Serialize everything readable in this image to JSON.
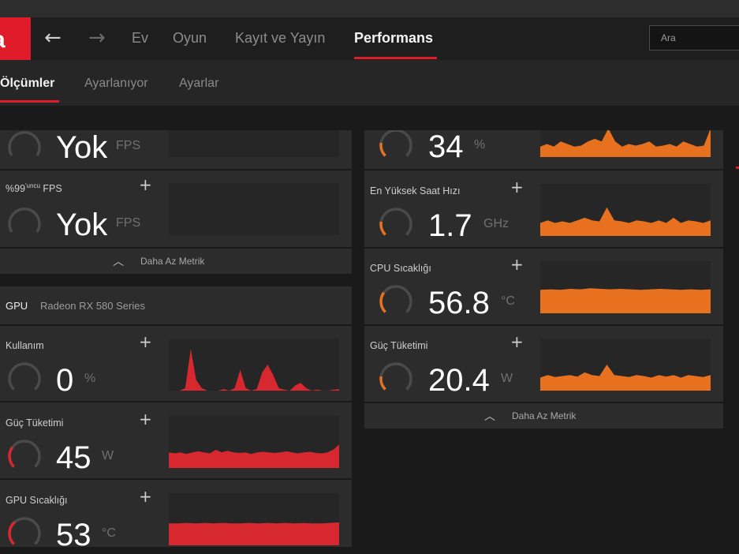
{
  "nav": {
    "logo": "a",
    "back_arrow": "←",
    "forward_arrow": "→",
    "items": [
      {
        "label": "Ev"
      },
      {
        "label": "Oyun"
      },
      {
        "label": "Kayıt ve Yayın"
      },
      {
        "label": "Performans",
        "active": true
      }
    ],
    "search_placeholder": "Ara"
  },
  "subnav": {
    "items": [
      {
        "label": "Ölçümler",
        "active": true
      },
      {
        "label": "Ayarlanıyor"
      },
      {
        "label": "Ayarlar"
      }
    ]
  },
  "left_panel": {
    "fps_row": {
      "value": "Yok",
      "unit": "FPS"
    },
    "p99_row": {
      "label_main": "%99",
      "label_sup": "'uncu",
      "label_tail": "FPS",
      "value": "Yok",
      "unit": "FPS"
    },
    "collapse_label": "Daha Az Metrik"
  },
  "gpu_panel": {
    "header": "GPU",
    "name": "Radeon RX 580 Series",
    "metrics": [
      {
        "label": "Kullanım",
        "value": "0",
        "unit": "%",
        "gauge_fraction": 0.0,
        "color": "#d7282f"
      },
      {
        "label": "Güç Tüketimi",
        "value": "45",
        "unit": "W",
        "gauge_fraction": 0.3,
        "color": "#d7282f"
      },
      {
        "label": "GPU Sıcaklığı",
        "value": "53",
        "unit": "°C",
        "gauge_fraction": 0.35,
        "color": "#d7282f"
      }
    ]
  },
  "cpu_panel": {
    "metrics": [
      {
        "label": "",
        "value": "34",
        "unit": "%",
        "gauge_fraction": 0.2,
        "color": "#e8711f"
      },
      {
        "label": "En Yüksek Saat Hızı",
        "value": "1.7",
        "unit": "GHz",
        "gauge_fraction": 0.2,
        "color": "#e8711f"
      },
      {
        "label": "CPU Sıcaklığı",
        "value": "56.8",
        "unit": "°C",
        "gauge_fraction": 0.3,
        "color": "#e8711f"
      },
      {
        "label": "Güç Tüketimi",
        "value": "20.4",
        "unit": "W",
        "gauge_fraction": 0.2,
        "color": "#e8711f"
      }
    ],
    "collapse_label": "Daha Az Metrik"
  },
  "icons": {
    "plus": "+",
    "chevron_up": "︿"
  },
  "colors": {
    "accent": "#e01b2a",
    "gpu_graph": "#d7282f",
    "cpu_graph": "#e8711f"
  }
}
